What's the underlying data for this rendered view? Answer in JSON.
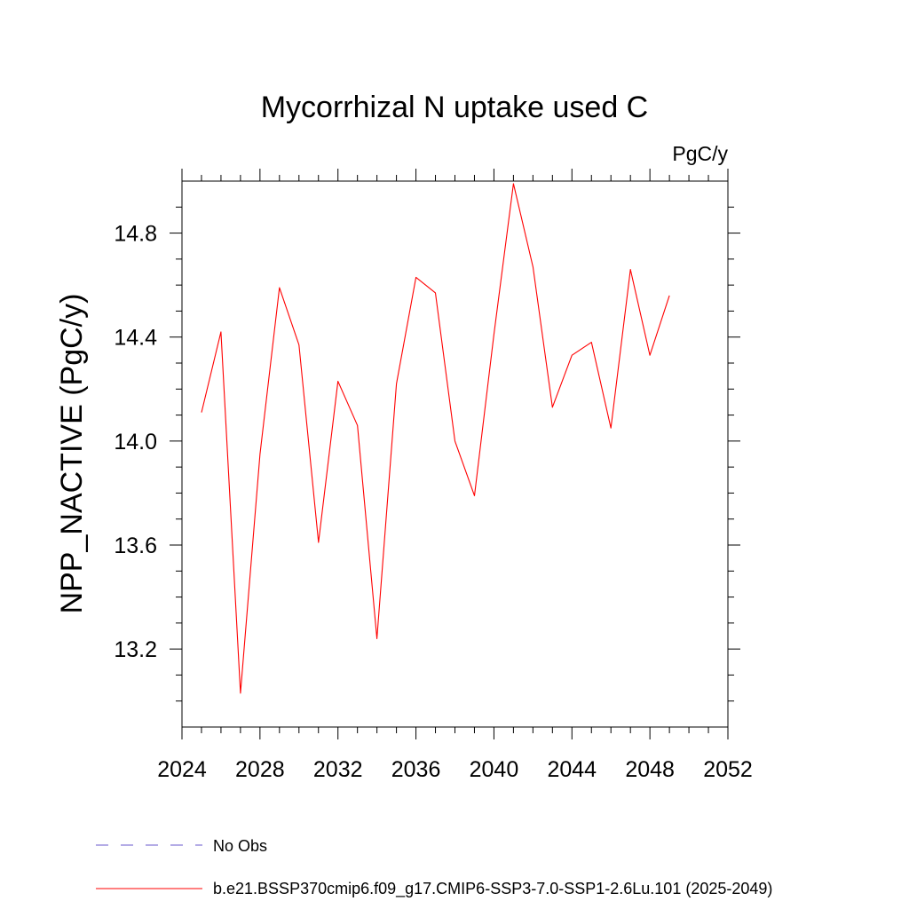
{
  "chart_data": {
    "type": "line",
    "title": "Mycorrhizal N uptake used C",
    "units": "PgC/y",
    "ylabel": "NPP_NACTIVE  (PgC/y)",
    "xlabel": "",
    "xlim": [
      2024,
      2052
    ],
    "ylim": [
      12.9,
      15.0
    ],
    "xticks": [
      2024,
      2028,
      2032,
      2036,
      2040,
      2044,
      2048,
      2052
    ],
    "yticks": [
      13.2,
      13.6,
      14.0,
      14.4,
      14.8
    ],
    "xtick_labels": [
      "2024",
      "2028",
      "2032",
      "2036",
      "2040",
      "2044",
      "2048",
      "2052"
    ],
    "ytick_labels": [
      "13.2",
      "13.6",
      "14.0",
      "14.4",
      "14.8"
    ],
    "grid": false,
    "legend_position": "bottom",
    "series": [
      {
        "name": "b.e21.BSSP370cmip6.f09_g17.CMIP6-SSP3-7.0-SSP1-2.6Lu.101 (2025-2049)",
        "color": "#ff0000",
        "x": [
          2025,
          2026,
          2027,
          2028,
          2029,
          2030,
          2031,
          2032,
          2033,
          2034,
          2035,
          2036,
          2037,
          2038,
          2039,
          2040,
          2041,
          2042,
          2043,
          2044,
          2045,
          2046,
          2047,
          2048,
          2049
        ],
        "y": [
          14.11,
          14.42,
          13.03,
          13.95,
          14.59,
          14.37,
          13.61,
          14.23,
          14.06,
          13.24,
          14.22,
          14.63,
          14.57,
          14.0,
          13.79,
          14.41,
          14.99,
          14.67,
          14.13,
          14.33,
          14.38,
          14.05,
          14.66,
          14.33,
          14.56
        ]
      }
    ],
    "legend": [
      {
        "label": "No Obs",
        "color": "#6a5acd",
        "style": "dashed"
      },
      {
        "label": "b.e21.BSSP370cmip6.f09_g17.CMIP6-SSP3-7.0-SSP1-2.6Lu.101 (2025-2049)",
        "color": "#ff0000",
        "style": "solid"
      }
    ]
  }
}
